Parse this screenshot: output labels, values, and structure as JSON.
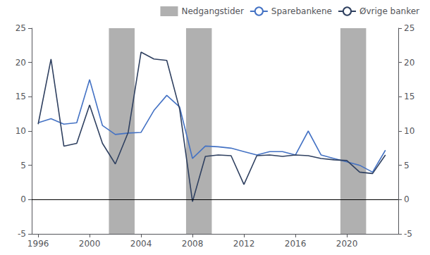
{
  "chart_data": {
    "type": "line",
    "x": [
      1996,
      1997,
      1998,
      1999,
      2000,
      2001,
      2002,
      2003,
      2004,
      2005,
      2006,
      2007,
      2008,
      2009,
      2010,
      2011,
      2012,
      2013,
      2014,
      2015,
      2016,
      2017,
      2018,
      2019,
      2020,
      2021,
      2022,
      2023
    ],
    "series": [
      {
        "name": "Sparebankene",
        "color": "#4472c4",
        "values": [
          11.2,
          11.8,
          11.0,
          11.2,
          17.5,
          10.8,
          9.5,
          9.7,
          9.8,
          13.0,
          15.2,
          13.5,
          6.0,
          7.8,
          7.7,
          7.5,
          7.0,
          6.5,
          7.0,
          7.0,
          6.5,
          10.0,
          6.5,
          6.0,
          5.5,
          5.0,
          4.0,
          7.2
        ]
      },
      {
        "name": "Øvrige banker",
        "color": "#2f4060",
        "values": [
          11.0,
          20.5,
          7.8,
          8.2,
          13.8,
          8.2,
          5.2,
          9.8,
          21.5,
          20.5,
          20.3,
          13.2,
          -0.3,
          6.3,
          6.5,
          6.4,
          2.2,
          6.4,
          6.5,
          6.3,
          6.5,
          6.4,
          6.0,
          5.8,
          5.7,
          4.0,
          3.8,
          6.5
        ]
      }
    ],
    "bands": {
      "name": "Nedgangstider",
      "color": "#b0b0b0",
      "ranges": [
        [
          2001.5,
          2003.5
        ],
        [
          2007.5,
          2009.5
        ],
        [
          2019.5,
          2021.5
        ]
      ]
    },
    "zero_line": {
      "y": 0,
      "color": "#000000"
    },
    "xlim": [
      1995.5,
      2024.0
    ],
    "xticks": [
      1996,
      2000,
      2004,
      2008,
      2012,
      2016,
      2020
    ],
    "ylim": [
      -5,
      25
    ],
    "yticks": [
      -5,
      0,
      5,
      10,
      15,
      20,
      25
    ],
    "y2lim": [
      -5,
      25
    ],
    "y2ticks": [
      -5,
      0,
      5,
      10,
      15,
      20,
      25
    ],
    "grid": false,
    "legend": "upper right"
  }
}
